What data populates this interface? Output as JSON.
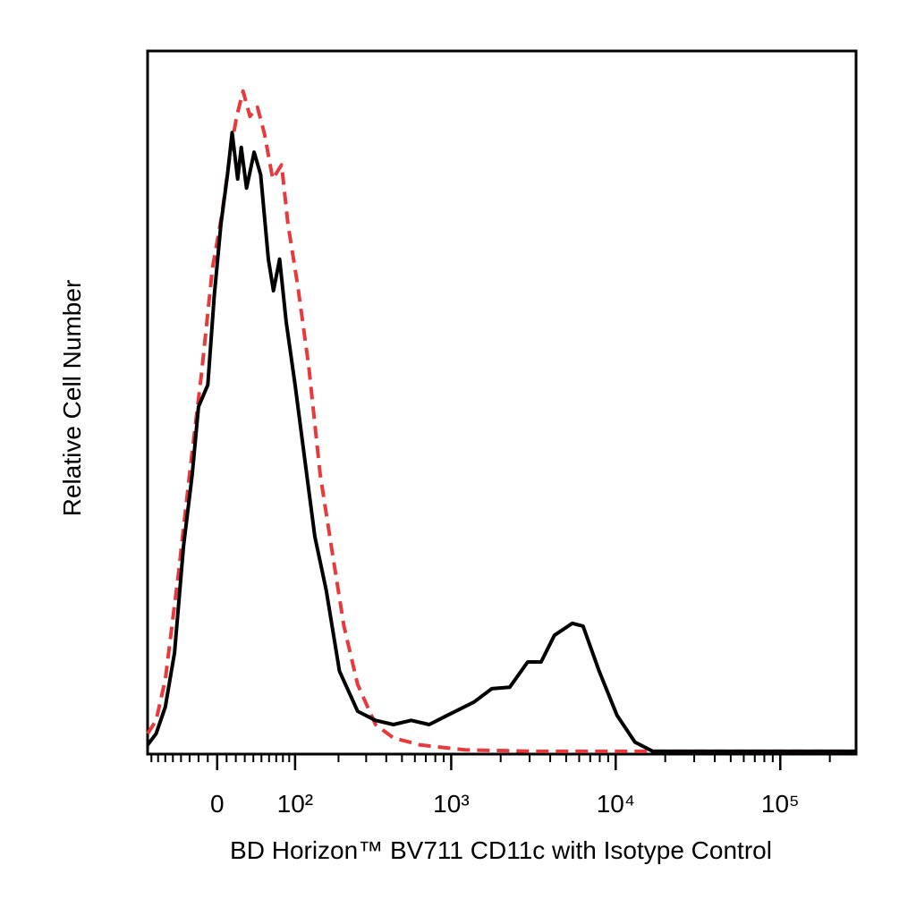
{
  "chart_data": {
    "type": "line",
    "xlabel": "BD Horizon™ BV711 CD11c with Isotype Control",
    "ylabel": "Relative Cell Number",
    "xscale": "biexponential",
    "xlim": [
      -86,
      288700
    ],
    "xticks": [
      0,
      {
        "value": 100,
        "label": "10²"
      },
      {
        "value": 1000,
        "label": "10³"
      },
      {
        "value": 10000,
        "label": "10⁴"
      },
      {
        "value": 100000,
        "label": "10⁵"
      }
    ],
    "xminorticks": [
      -80,
      -70,
      -60,
      -50,
      -40,
      -30,
      -20,
      -10,
      10,
      20,
      30,
      40,
      50,
      60,
      70,
      80,
      90,
      200,
      300,
      400,
      500,
      600,
      700,
      800,
      900,
      2000,
      3000,
      4000,
      5000,
      6000,
      7000,
      8000,
      9000,
      20000,
      30000,
      40000,
      50000,
      60000,
      70000,
      80000,
      90000,
      200000
    ],
    "ylim": [
      0,
      100
    ],
    "series": [
      {
        "color": "#000000",
        "dash": "solid",
        "x": [
          -86,
          -73,
          -60,
          -48,
          -37,
          -27,
          -20,
          -10,
          -3,
          4,
          11,
          16,
          22,
          26,
          32,
          41,
          49,
          59,
          66,
          75,
          85,
          100,
          117,
          139,
          166,
          203,
          265,
          343,
          443,
          570,
          734,
          944,
          1376,
          1767,
          2270,
          2918,
          3520,
          4245,
          5450,
          6337,
          7936,
          10190,
          13083,
          16800,
          288700
        ],
        "values": [
          1.3,
          2.9,
          6.7,
          14.4,
          29.6,
          39.8,
          49.4,
          52.5,
          65.3,
          75.4,
          82.4,
          88.4,
          81.8,
          86.3,
          80.5,
          85.6,
          82.4,
          70.4,
          65.9,
          70.4,
          61.5,
          52.5,
          42.4,
          30.9,
          23.3,
          11.8,
          6.1,
          4.8,
          4.2,
          4.8,
          4.2,
          5.5,
          7.4,
          9.3,
          9.5,
          13.1,
          13.1,
          16.9,
          18.6,
          18.2,
          11.8,
          5.5,
          1.7,
          0.4,
          0.4
        ]
      },
      {
        "color": "#e8393c",
        "dash": "dashed",
        "x": [
          -86,
          -73,
          -60,
          -43,
          -30,
          -17,
          -5,
          5,
          14,
          21,
          28,
          36,
          45,
          54,
          65,
          78,
          88,
          105,
          126,
          151,
          183,
          217,
          265,
          343,
          443,
          647,
          1213,
          3305,
          288700
        ],
        "values": [
          2.9,
          4.8,
          10.6,
          25.8,
          39.8,
          53.8,
          69.1,
          76.7,
          85.6,
          90.7,
          94.3,
          90.7,
          92.0,
          88.2,
          81.8,
          83.8,
          75.4,
          66.5,
          55.1,
          39.8,
          28.4,
          18.2,
          9.9,
          4.2,
          2.3,
          1.3,
          0.6,
          0.4,
          0.4
        ]
      }
    ]
  }
}
